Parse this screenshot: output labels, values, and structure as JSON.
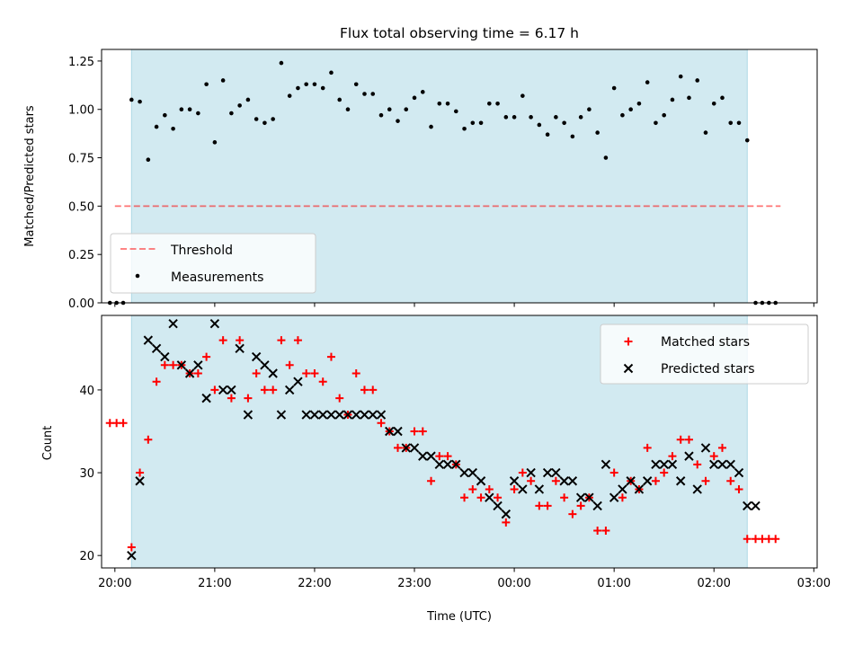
{
  "title": "Flux total observing time = 6.17 h",
  "colors": {
    "shade": "#add8e6",
    "threshold": "#ff0000",
    "measurements": "#000000",
    "matched": "#ff0000",
    "predicted": "#000000"
  },
  "chart_data": [
    {
      "type": "scatter",
      "ylabel": "Matched/Predicted stars",
      "ylim": [
        0,
        1.31
      ],
      "xlim": [
        "19:52",
        "03:02"
      ],
      "yticks": [
        "0.00",
        "0.25",
        "0.50",
        "0.75",
        "1.00",
        "1.25"
      ],
      "shaded_interval": [
        "20:10",
        "02:20"
      ],
      "threshold": {
        "value": 0.5,
        "x_start": "20:00",
        "x_end": "02:40"
      },
      "legend": {
        "position": "lower-left",
        "entries": [
          "Threshold",
          "Measurements"
        ]
      },
      "series": [
        {
          "name": "Measurements",
          "x": [
            "19:57",
            "20:01",
            "20:05",
            "20:10",
            "20:15",
            "20:20",
            "20:25",
            "20:30",
            "20:35",
            "20:40",
            "20:45",
            "20:50",
            "20:55",
            "21:00",
            "21:05",
            "21:10",
            "21:15",
            "21:20",
            "21:25",
            "21:30",
            "21:35",
            "21:40",
            "21:45",
            "21:50",
            "21:55",
            "22:00",
            "22:05",
            "22:10",
            "22:15",
            "22:20",
            "22:25",
            "22:30",
            "22:35",
            "22:40",
            "22:45",
            "22:50",
            "22:55",
            "23:00",
            "23:05",
            "23:10",
            "23:15",
            "23:20",
            "23:25",
            "23:30",
            "23:35",
            "23:40",
            "23:45",
            "23:50",
            "23:55",
            "00:00",
            "00:05",
            "00:10",
            "00:15",
            "00:20",
            "00:25",
            "00:30",
            "00:35",
            "00:40",
            "00:45",
            "00:50",
            "00:55",
            "01:00",
            "01:05",
            "01:10",
            "01:15",
            "01:20",
            "01:25",
            "01:30",
            "01:35",
            "01:40",
            "01:45",
            "01:50",
            "01:55",
            "02:00",
            "02:05",
            "02:10",
            "02:15",
            "02:20",
            "02:25",
            "02:29",
            "02:33",
            "02:37"
          ],
          "y": [
            0.0,
            0.0,
            0.0,
            1.05,
            1.04,
            0.74,
            0.91,
            0.97,
            0.9,
            1.0,
            1.0,
            0.98,
            1.13,
            0.83,
            1.15,
            0.98,
            1.02,
            1.05,
            0.95,
            0.93,
            0.95,
            1.24,
            1.07,
            1.11,
            1.13,
            1.13,
            1.11,
            1.19,
            1.05,
            1.0,
            1.13,
            1.08,
            1.08,
            0.97,
            1.0,
            0.94,
            1.0,
            1.06,
            1.09,
            0.91,
            1.03,
            1.03,
            0.99,
            0.9,
            0.93,
            0.93,
            1.03,
            1.03,
            0.96,
            0.96,
            1.07,
            0.96,
            0.92,
            0.87,
            0.96,
            0.93,
            0.86,
            0.96,
            1.0,
            0.88,
            0.75,
            1.11,
            0.97,
            1.0,
            1.03,
            1.14,
            0.93,
            0.97,
            1.05,
            1.17,
            1.06,
            1.15,
            0.88,
            1.03,
            1.06,
            0.93,
            0.93,
            0.84,
            0.0,
            0.0,
            0.0,
            0.0
          ]
        }
      ]
    },
    {
      "type": "scatter",
      "xlabel": "Time (UTC)",
      "ylabel": "Count",
      "ylim": [
        18.5,
        49.0
      ],
      "xlim": [
        "19:52",
        "03:02"
      ],
      "xticks": [
        "20:00",
        "21:00",
        "22:00",
        "23:00",
        "00:00",
        "01:00",
        "02:00",
        "03:00"
      ],
      "yticks": [
        "20",
        "30",
        "40"
      ],
      "shaded_interval": [
        "20:10",
        "02:20"
      ],
      "legend": {
        "position": "top-right",
        "entries": [
          "Matched stars",
          "Predicted stars"
        ]
      },
      "series": [
        {
          "name": "Matched stars",
          "x": [
            "19:57",
            "20:01",
            "20:05",
            "20:10",
            "20:15",
            "20:20",
            "20:25",
            "20:30",
            "20:35",
            "20:40",
            "20:45",
            "20:50",
            "20:55",
            "21:00",
            "21:05",
            "21:10",
            "21:15",
            "21:20",
            "21:25",
            "21:30",
            "21:35",
            "21:40",
            "21:45",
            "21:50",
            "21:55",
            "22:00",
            "22:05",
            "22:10",
            "22:15",
            "22:20",
            "22:25",
            "22:30",
            "22:35",
            "22:40",
            "22:45",
            "22:50",
            "22:55",
            "23:00",
            "23:05",
            "23:10",
            "23:15",
            "23:20",
            "23:25",
            "23:30",
            "23:35",
            "23:40",
            "23:45",
            "23:50",
            "23:55",
            "00:00",
            "00:05",
            "00:10",
            "00:15",
            "00:20",
            "00:25",
            "00:30",
            "00:35",
            "00:40",
            "00:45",
            "00:50",
            "00:55",
            "01:00",
            "01:05",
            "01:10",
            "01:15",
            "01:20",
            "01:25",
            "01:30",
            "01:35",
            "01:40",
            "01:45",
            "01:50",
            "01:55",
            "02:00",
            "02:05",
            "02:10",
            "02:15",
            "02:20",
            "02:25",
            "02:29",
            "02:33",
            "02:37"
          ],
          "y": [
            36,
            36,
            36,
            21,
            30,
            34,
            41,
            43,
            43,
            43,
            42,
            42,
            44,
            40,
            46,
            39,
            46,
            39,
            42,
            40,
            40,
            46,
            43,
            46,
            42,
            42,
            41,
            44,
            39,
            37,
            42,
            40,
            40,
            36,
            35,
            33,
            33,
            35,
            35,
            29,
            32,
            32,
            31,
            27,
            28,
            27,
            28,
            27,
            24,
            28,
            30,
            29,
            26,
            26,
            29,
            27,
            25,
            26,
            27,
            23,
            23,
            30,
            27,
            29,
            28,
            33,
            29,
            30,
            32,
            34,
            34,
            31,
            29,
            32,
            33,
            29,
            28,
            22,
            22,
            22,
            22,
            22
          ]
        },
        {
          "name": "Predicted stars",
          "x": [
            "20:10",
            "20:15",
            "20:20",
            "20:25",
            "20:30",
            "20:35",
            "20:40",
            "20:45",
            "20:50",
            "20:55",
            "21:00",
            "21:05",
            "21:10",
            "21:15",
            "21:20",
            "21:25",
            "21:30",
            "21:35",
            "21:40",
            "21:45",
            "21:50",
            "21:55",
            "22:00",
            "22:05",
            "22:10",
            "22:15",
            "22:20",
            "22:25",
            "22:30",
            "22:35",
            "22:40",
            "22:45",
            "22:50",
            "22:55",
            "23:00",
            "23:05",
            "23:10",
            "23:15",
            "23:20",
            "23:25",
            "23:30",
            "23:35",
            "23:40",
            "23:45",
            "23:50",
            "23:55",
            "00:00",
            "00:05",
            "00:10",
            "00:15",
            "00:20",
            "00:25",
            "00:30",
            "00:35",
            "00:40",
            "00:45",
            "00:50",
            "00:55",
            "01:00",
            "01:05",
            "01:10",
            "01:15",
            "01:20",
            "01:25",
            "01:30",
            "01:35",
            "01:40",
            "01:45",
            "01:50",
            "01:55",
            "02:00",
            "02:05",
            "02:10",
            "02:15",
            "02:20",
            "02:25"
          ],
          "y": [
            20,
            29,
            46,
            45,
            44,
            48,
            43,
            42,
            43,
            39,
            48,
            40,
            40,
            45,
            37,
            44,
            43,
            42,
            37,
            40,
            41,
            37,
            37,
            37,
            37,
            37,
            37,
            37,
            37,
            37,
            37,
            35,
            35,
            33,
            33,
            32,
            32,
            31,
            31,
            31,
            30,
            30,
            29,
            27,
            26,
            25,
            29,
            28,
            30,
            28,
            30,
            30,
            29,
            29,
            27,
            27,
            26,
            31,
            27,
            28,
            29,
            28,
            29,
            31,
            31,
            31,
            29,
            32,
            28,
            33,
            31,
            31,
            31,
            30,
            26,
            26
          ]
        }
      ]
    }
  ]
}
